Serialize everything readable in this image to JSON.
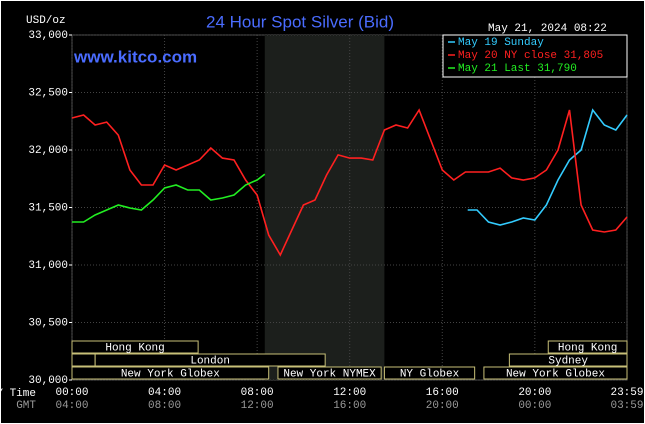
{
  "chart_data": {
    "type": "line",
    "title": "24 Hour Spot Silver (Bid)",
    "ylabel": "USD/oz",
    "timestamp": "May 21, 2024 08:22",
    "site": "www.kitco.com",
    "xlabel": "NY Time",
    "x2label": "GMT",
    "xlim": [
      0,
      23.983
    ],
    "ylim": [
      30000,
      33000
    ],
    "xticks": [
      {
        "value": 0,
        "label": "00:00"
      },
      {
        "value": 4,
        "label": "04:00"
      },
      {
        "value": 8,
        "label": "08:00"
      },
      {
        "value": 12,
        "label": "12:00"
      },
      {
        "value": 16,
        "label": "16:00"
      },
      {
        "value": 20,
        "label": "20:00"
      },
      {
        "value": 23.983,
        "label": "23:59"
      }
    ],
    "x2ticks": [
      {
        "value": 0,
        "label": "04:00"
      },
      {
        "value": 4,
        "label": "08:00"
      },
      {
        "value": 8,
        "label": "12:00"
      },
      {
        "value": 12,
        "label": "16:00"
      },
      {
        "value": 16,
        "label": "20:00"
      },
      {
        "value": 20,
        "label": "00:00"
      },
      {
        "value": 23.983,
        "label": "03:59"
      }
    ],
    "yticks": [
      {
        "value": 30000,
        "label": "30,000"
      },
      {
        "value": 30500,
        "label": "30,500"
      },
      {
        "value": 31000,
        "label": "31,000"
      },
      {
        "value": 31500,
        "label": "31,500"
      },
      {
        "value": 32000,
        "label": "32,000"
      },
      {
        "value": 32500,
        "label": "32,500"
      },
      {
        "value": 33000,
        "label": "33,000"
      }
    ],
    "grid": true,
    "highlight": {
      "x": [
        8.33,
        13.5
      ],
      "color": "#1c1f1c"
    },
    "session_color": "#c8c078",
    "session_rows": [
      [
        {
          "label": "Hong Kong",
          "start": 0,
          "end": 5.45
        },
        {
          "label": "Hong Kong",
          "start": 20.58,
          "end": 23.983
        }
      ],
      [
        {
          "label": null,
          "start": 0,
          "end": 1.0
        },
        {
          "label": "London",
          "start": 1.0,
          "end": 10.94
        },
        {
          "label": "Sydney",
          "start": 18.9,
          "end": 23.983
        }
      ],
      [
        {
          "label": "New York Globex",
          "start": 0,
          "end": 8.5
        },
        {
          "label": "New York NYMEX",
          "start": 8.9,
          "end": 13.36
        },
        {
          "label": "NY Globex",
          "start": 13.5,
          "end": 17.4
        },
        {
          "label": "New York Globex",
          "start": 17.8,
          "end": 23.983
        }
      ]
    ],
    "series": [
      {
        "name": "May 19 Sunday",
        "color": "#33ccff",
        "x": [
          17.1,
          17.5,
          18,
          18.5,
          19,
          19.5,
          20,
          20.5,
          21,
          21.5,
          22,
          22.5,
          23,
          23.5,
          23.983
        ],
        "values": [
          31478,
          31478,
          31374,
          31348,
          31374,
          31409,
          31391,
          31522,
          31739,
          31913,
          32000,
          32348,
          32217,
          32174,
          32304
        ]
      },
      {
        "name": "May 20 NY close 31,805",
        "color": "#ff2020",
        "x": [
          0,
          0.5,
          1,
          1.5,
          2,
          2.5,
          3,
          3.5,
          4,
          4.5,
          5,
          5.5,
          6,
          6.5,
          7,
          7.5,
          8,
          8.5,
          9,
          9.5,
          10,
          10.5,
          11,
          11.5,
          12,
          12.5,
          13,
          13.5,
          14,
          14.5,
          15,
          15.5,
          16,
          16.5,
          17,
          17.5,
          18,
          18.5,
          19,
          19.5,
          20,
          20.5,
          21,
          21.5,
          22,
          22.5,
          23,
          23.5,
          23.983
        ],
        "values": [
          32278,
          32304,
          32217,
          32243,
          32130,
          31826,
          31696,
          31696,
          31870,
          31826,
          31870,
          31913,
          32017,
          31930,
          31913,
          31739,
          31609,
          31261,
          31087,
          31304,
          31522,
          31565,
          31783,
          31957,
          31930,
          31930,
          31913,
          32174,
          32217,
          32191,
          32348,
          32087,
          31826,
          31739,
          31809,
          31809,
          31809,
          31843,
          31757,
          31739,
          31757,
          31826,
          32000,
          32348,
          31522,
          31304,
          31287,
          31304,
          31417
        ]
      },
      {
        "name": "May 21 Last 31,790",
        "color": "#22ee22",
        "x": [
          0,
          0.5,
          1,
          1.5,
          2,
          2.5,
          3,
          3.5,
          4,
          4.5,
          5,
          5.5,
          6,
          6.5,
          7,
          7.5,
          8,
          8.33
        ],
        "values": [
          31374,
          31374,
          31435,
          31478,
          31522,
          31496,
          31478,
          31565,
          31670,
          31696,
          31652,
          31652,
          31565,
          31583,
          31609,
          31696,
          31739,
          31790
        ]
      }
    ]
  }
}
